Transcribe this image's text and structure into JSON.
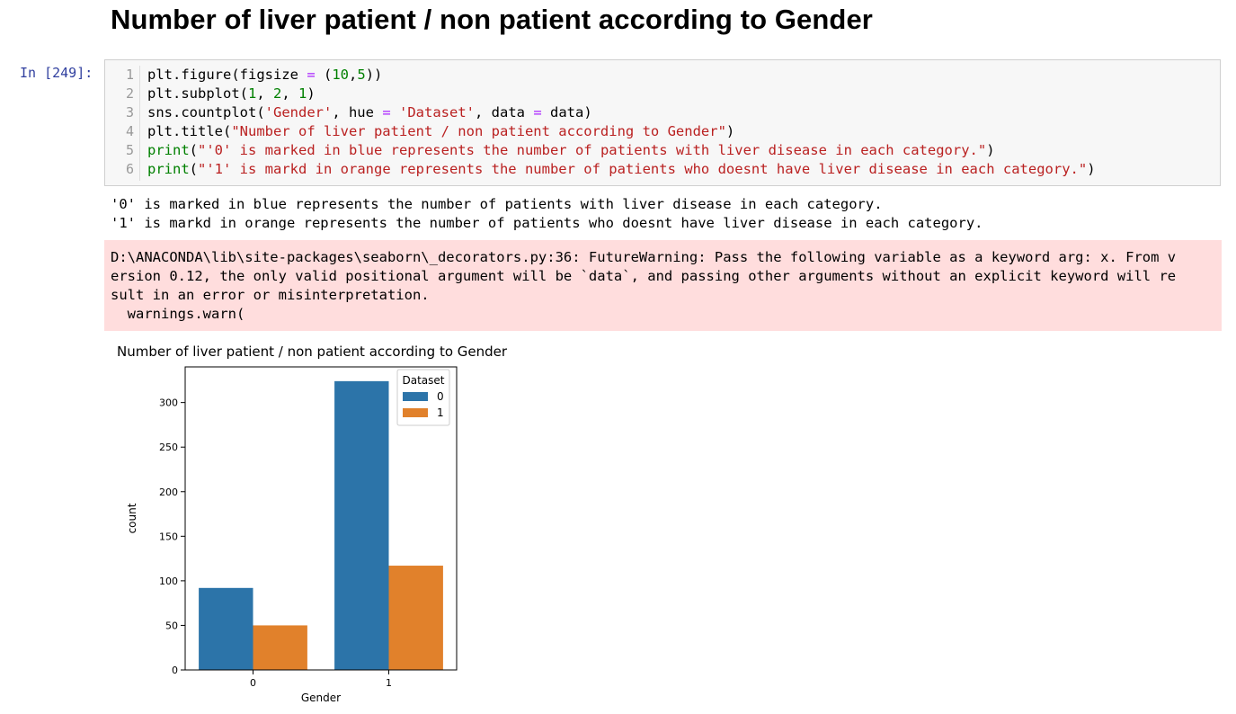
{
  "heading": "Number of liver patient / non patient according to Gender",
  "cell": {
    "prompt": "In [249]:",
    "line_numbers": [
      "1",
      "2",
      "3",
      "4",
      "5",
      "6"
    ]
  },
  "code": {
    "l1_a": "plt.figure(figsize ",
    "l1_op": "=",
    "l1_b": " (",
    "l1_n1": "10",
    "l1_c": ",",
    "l1_n2": "5",
    "l1_d": "))",
    "l2_a": "plt.subplot(",
    "l2_n1": "1",
    "l2_b": ", ",
    "l2_n2": "2",
    "l2_c": ", ",
    "l2_n3": "1",
    "l2_d": ")",
    "l3_a": "sns.countplot(",
    "l3_s1": "'Gender'",
    "l3_b": ", hue ",
    "l3_op1": "=",
    "l3_c": " ",
    "l3_s2": "'Dataset'",
    "l3_d": ", data ",
    "l3_op2": "=",
    "l3_e": " data)",
    "l4_a": "plt.title(",
    "l4_s": "\"Number of liver patient / non patient according to Gender\"",
    "l4_b": ")",
    "l5_k": "print",
    "l5_a": "(",
    "l5_s": "\"'0' is marked in blue represents the number of patients with liver disease in each category.\"",
    "l5_b": ")",
    "l6_k": "print",
    "l6_a": "(",
    "l6_s": "\"'1' is markd in orange represents the number of patients who doesnt have liver disease in each category.\"",
    "l6_b": ")"
  },
  "stdout": [
    "'0' is marked in blue represents the number of patients with liver disease in each category.",
    "'1' is markd in orange represents the number of patients who doesnt have liver disease in each category."
  ],
  "stderr": [
    "D:\\ANACONDA\\lib\\site-packages\\seaborn\\_decorators.py:36: FutureWarning: Pass the following variable as a keyword arg: x. From v",
    "ersion 0.12, the only valid positional argument will be `data`, and passing other arguments without an explicit keyword will re",
    "sult in an error or misinterpretation.",
    "  warnings.warn("
  ],
  "chart_data": {
    "type": "bar",
    "title": "Number of liver patient / non patient according to Gender",
    "xlabel": "Gender",
    "ylabel": "count",
    "categories": [
      "0",
      "1"
    ],
    "series": [
      {
        "name": "0",
        "values": [
          92,
          324
        ],
        "color": "#2c74a9"
      },
      {
        "name": "1",
        "values": [
          50,
          117
        ],
        "color": "#e1812b"
      }
    ],
    "ylim": [
      0,
      340
    ],
    "yticks": [
      0,
      50,
      100,
      150,
      200,
      250,
      300
    ],
    "legend": {
      "title": "Dataset",
      "placement": "top-right"
    },
    "grid": false
  }
}
